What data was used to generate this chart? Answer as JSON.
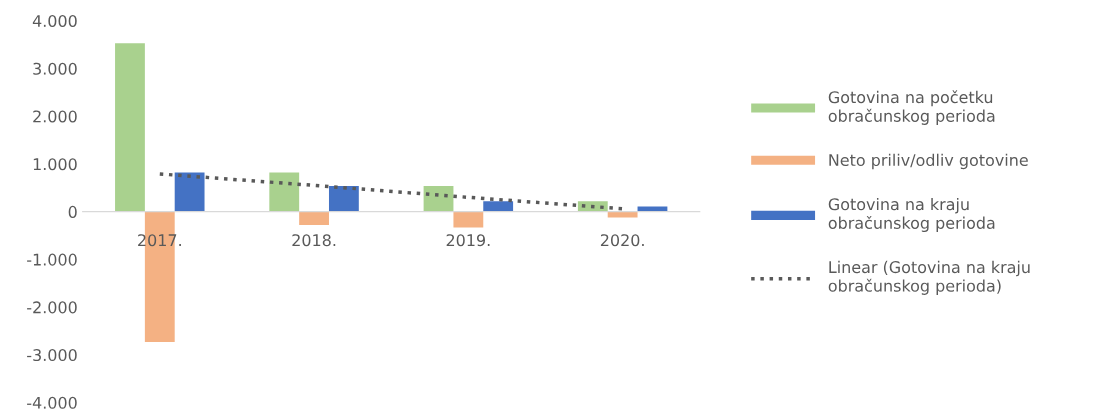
{
  "chart_data": {
    "type": "bar",
    "categories": [
      "2017.",
      "2018.",
      "2019.",
      "2020."
    ],
    "series": [
      {
        "name": "Gotovina na početku obračunskog perioda",
        "color": "#a9d18e",
        "values": [
          3530,
          820,
          540,
          220
        ]
      },
      {
        "name": "Neto priliv/odliv gotovine",
        "color": "#f4b183",
        "values": [
          -2730,
          -280,
          -330,
          -120
        ]
      },
      {
        "name": "Gotovina na kraju obračunskog perioda",
        "color": "#4472c4",
        "values": [
          820,
          540,
          220,
          110
        ]
      },
      {
        "name": "Linear (Gotovina na kraju obračunskog perioda)",
        "color": "#595959",
        "type": "line",
        "line_style": "dotted",
        "values": [
          790,
          550,
          300,
          60
        ]
      }
    ],
    "ylim": [
      -4000,
      4000
    ],
    "yticks": [
      {
        "value": -4000,
        "label": "-4.000"
      },
      {
        "value": -3000,
        "label": "-3.000"
      },
      {
        "value": -2000,
        "label": "-2.000"
      },
      {
        "value": -1000,
        "label": "-1.000"
      },
      {
        "value": 0,
        "label": "0"
      },
      {
        "value": 1000,
        "label": "1.000"
      },
      {
        "value": 2000,
        "label": "2.000"
      },
      {
        "value": 3000,
        "label": "3.000"
      },
      {
        "value": 4000,
        "label": "4.000"
      }
    ],
    "grid": false,
    "legend": "right"
  }
}
